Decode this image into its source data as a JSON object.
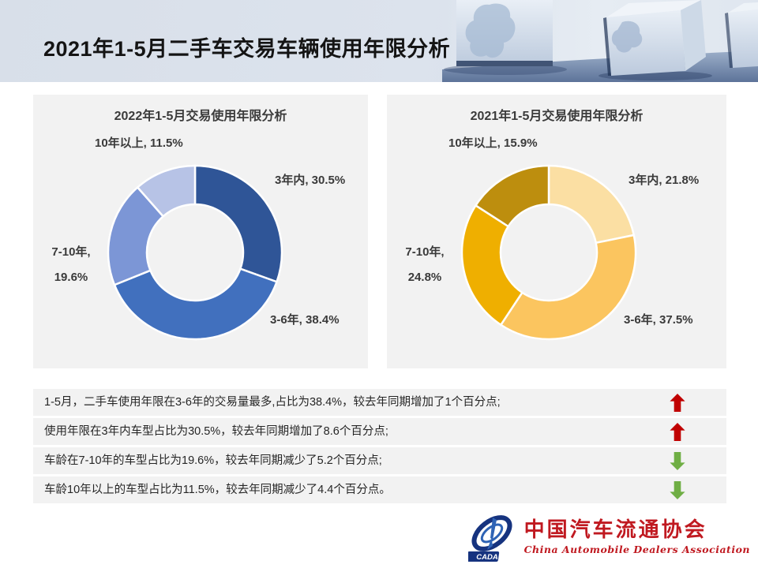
{
  "slide": {
    "title": "2021年1-5月二手车交易车辆使用年限分析"
  },
  "chart_data": [
    {
      "type": "pie",
      "subtype": "donut",
      "title": "2022年1-5月交易使用年限分析",
      "categories": [
        "3年内",
        "3-6年",
        "7-10年",
        "10年以上"
      ],
      "values": [
        30.5,
        38.4,
        19.6,
        11.5
      ],
      "unit": "%",
      "colors": [
        "#2F5597",
        "#4170BE",
        "#7C96D6",
        "#B7C3E6"
      ],
      "start_at": "top",
      "direction": "clockwise",
      "legend": "none",
      "data_labels": "category, percent",
      "labels": {
        "ten_plus": "10年以上, 11.5%",
        "three_in": "3年内, 30.5%",
        "seven_ten": "7-10年,\n19.6%",
        "three_six": "3-6年, 38.4%"
      }
    },
    {
      "type": "pie",
      "subtype": "donut",
      "title": "2021年1-5月交易使用年限分析",
      "categories": [
        "3年内",
        "3-6年",
        "7-10年",
        "10年以上"
      ],
      "values": [
        21.8,
        37.5,
        24.8,
        15.9
      ],
      "unit": "%",
      "colors": [
        "#FBDFA3",
        "#FBC55F",
        "#EFAF00",
        "#BD8E0E"
      ],
      "start_at": "top",
      "direction": "clockwise",
      "legend": "none",
      "data_labels": "category, percent",
      "labels": {
        "ten_plus": "10年以上, 15.9%",
        "three_in": "3年内, 21.8%",
        "seven_ten": "7-10年,\n24.8%",
        "three_six": "3-6年, 37.5%"
      }
    }
  ],
  "summary_table": {
    "rows": [
      {
        "text": "1-5月，二手车使用年限在3-6年的交易量最多,占比为38.4%，较去年同期增加了1个百分点;",
        "trend": "up"
      },
      {
        "text": "使用年限在3年内车型占比为30.5%，较去年同期增加了8.6个百分点;",
        "trend": "up"
      },
      {
        "text": "车龄在7-10年的车型占比为19.6%，较去年同期减少了5.2个百分点;",
        "trend": "down"
      },
      {
        "text": "车龄10年以上的车型占比为11.5%，较去年同期减少了4.4个百分点。",
        "trend": "down"
      }
    ]
  },
  "colors": {
    "up_arrow": "#C00000",
    "down_arrow": "#6FAE44",
    "panel_bg": "#F2F2F2"
  },
  "logo": {
    "cn_name": "中国汽车流通协会",
    "en_name": "China Automobile Dealers Association",
    "acronym": "CADA"
  }
}
